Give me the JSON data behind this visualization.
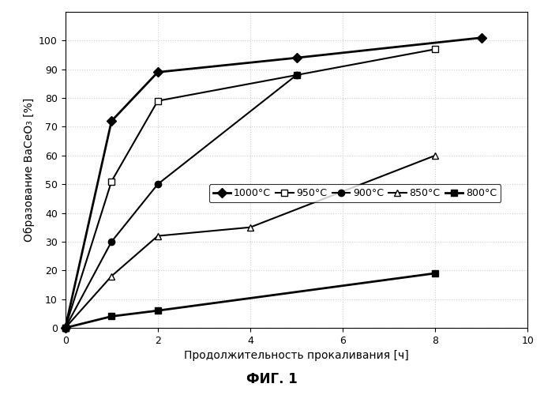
{
  "series": [
    {
      "label": "1000°C",
      "x": [
        0,
        1,
        2,
        5,
        9
      ],
      "y": [
        0,
        72,
        89,
        94,
        101
      ],
      "color": "black",
      "marker": "D",
      "marker_filled": true,
      "linewidth": 2.0,
      "markersize": 6
    },
    {
      "label": "950°C",
      "x": [
        0,
        1,
        2,
        5,
        8
      ],
      "y": [
        0,
        51,
        79,
        88,
        97
      ],
      "color": "black",
      "marker": "s",
      "marker_filled": false,
      "linewidth": 1.5,
      "markersize": 6
    },
    {
      "label": "900°C",
      "x": [
        0,
        1,
        2,
        5
      ],
      "y": [
        0,
        30,
        50,
        88
      ],
      "color": "black",
      "marker": "o",
      "marker_filled": true,
      "linewidth": 1.5,
      "markersize": 6
    },
    {
      "label": "850°C",
      "x": [
        0,
        1,
        2,
        4,
        8
      ],
      "y": [
        0,
        18,
        32,
        35,
        60
      ],
      "color": "black",
      "marker": "^",
      "marker_filled": false,
      "linewidth": 1.5,
      "markersize": 6
    },
    {
      "label": "800°C",
      "x": [
        0,
        1,
        2,
        8
      ],
      "y": [
        0,
        4,
        6,
        19
      ],
      "color": "black",
      "marker": "s",
      "marker_filled": true,
      "linewidth": 2.0,
      "markersize": 6
    }
  ],
  "xlabel": "Продолжительность прокаливания [ч]",
  "ylabel": "Образование BaCeO₃ [%]",
  "title": "ФИГ. 1",
  "xlim": [
    0,
    10
  ],
  "ylim": [
    0,
    110
  ],
  "xticks": [
    0,
    2,
    4,
    6,
    8,
    10
  ],
  "yticks": [
    0,
    10,
    20,
    30,
    40,
    50,
    60,
    70,
    80,
    90,
    100
  ],
  "background_color": "#ffffff",
  "grid_color": "#d0d0d0",
  "xlabel_fontsize": 10,
  "ylabel_fontsize": 10,
  "tick_fontsize": 9,
  "legend_fontsize": 9,
  "title_fontsize": 12
}
